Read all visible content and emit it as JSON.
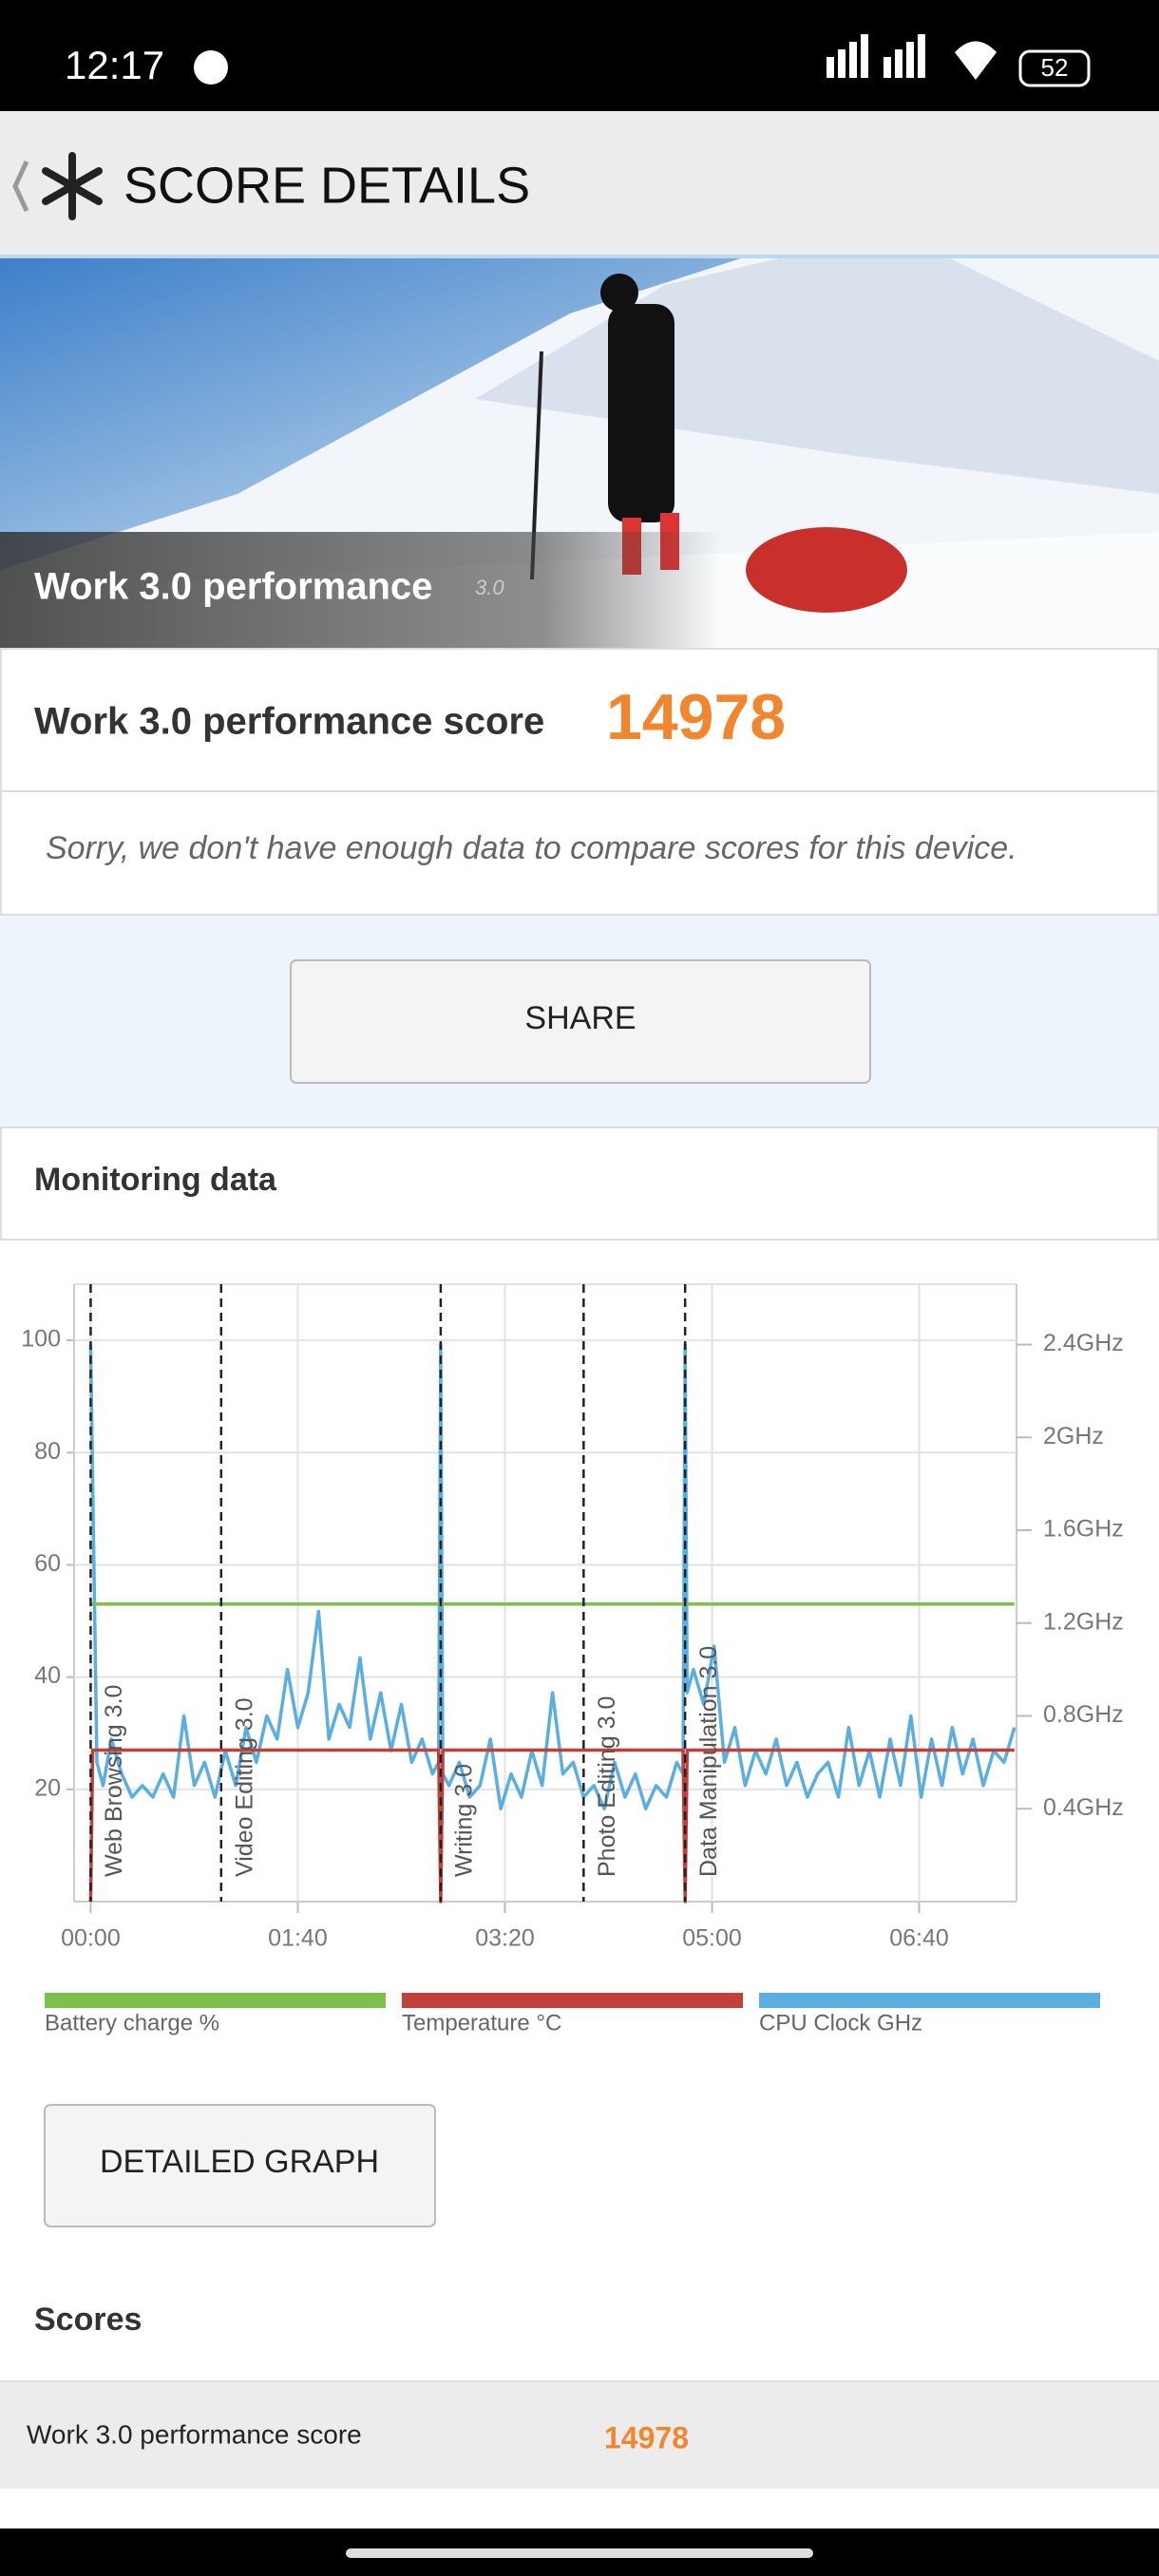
{
  "status_bar": {
    "time": "12:17",
    "battery": "52"
  },
  "header": {
    "title": "SCORE DETAILS"
  },
  "hero": {
    "title": "Work 3.0 performance",
    "version": "3.0"
  },
  "score": {
    "label": "Work 3.0 performance score",
    "value": 14978
  },
  "note": "Sorry, we don't have enough data to compare scores for this device.",
  "share_button": "SHARE",
  "monitoring": {
    "title": "Monitoring data"
  },
  "chart_data": {
    "type": "line",
    "xlim": [
      -8,
      447
    ],
    "xticks": [
      {
        "value": 0,
        "label": "00:00"
      },
      {
        "value": 100,
        "label": "01:40"
      },
      {
        "value": 200,
        "label": "03:20"
      },
      {
        "value": 300,
        "label": "05:00"
      },
      {
        "value": 400,
        "label": "06:40"
      }
    ],
    "ylim": [
      0,
      110
    ],
    "yticks": [
      20,
      40,
      60,
      80,
      100
    ],
    "y2lim": [
      0,
      2.66
    ],
    "y2ticks": [
      {
        "value": 0.4,
        "label": "0.4GHz"
      },
      {
        "value": 0.8,
        "label": "0.8GHz"
      },
      {
        "value": 1.2,
        "label": "1.2GHz"
      },
      {
        "value": 1.6,
        "label": "1.6GHz"
      },
      {
        "value": 2.0,
        "label": "2GHz"
      },
      {
        "value": 2.4,
        "label": "2.4GHz"
      }
    ],
    "grid": true,
    "legend": "bottom",
    "markers": [
      {
        "x": 0,
        "label": "Web Browsing 3.0"
      },
      {
        "x": 63,
        "label": "Video Editing 3.0"
      },
      {
        "x": 169,
        "label": "Writing 3.0"
      },
      {
        "x": 238,
        "label": "Photo Editing 3.0"
      },
      {
        "x": 287,
        "label": "Data Manipulation 3.0"
      }
    ],
    "series": [
      {
        "name": "Battery charge %",
        "color": "#7dc04b",
        "x": [
          0,
          446
        ],
        "values": [
          53,
          53
        ]
      },
      {
        "name": "Temperature °C",
        "color": "#c0403a",
        "x": [
          0,
          1,
          168,
          169,
          170,
          286,
          287,
          288,
          446
        ],
        "values": [
          0,
          27,
          27,
          0,
          27,
          27,
          0,
          27,
          27
        ]
      },
      {
        "name": "CPU Clock GHz",
        "color": "#5aafe0",
        "axis": "y2",
        "x": [
          0,
          3,
          6,
          10,
          15,
          20,
          25,
          30,
          35,
          40,
          45,
          50,
          55,
          60,
          65,
          70,
          75,
          80,
          85,
          90,
          95,
          100,
          105,
          110,
          115,
          120,
          125,
          130,
          135,
          140,
          145,
          150,
          155,
          160,
          165,
          168,
          169,
          170,
          173,
          178,
          183,
          188,
          193,
          198,
          203,
          208,
          213,
          218,
          223,
          228,
          233,
          238,
          243,
          248,
          253,
          258,
          263,
          268,
          273,
          278,
          283,
          286,
          287,
          288,
          291,
          296,
          301,
          306,
          311,
          316,
          321,
          326,
          331,
          336,
          341,
          346,
          351,
          356,
          361,
          366,
          371,
          376,
          381,
          386,
          391,
          396,
          401,
          406,
          411,
          416,
          421,
          426,
          431,
          436,
          441,
          446
        ],
        "values": [
          2.4,
          0.6,
          0.5,
          0.7,
          0.55,
          0.45,
          0.5,
          0.45,
          0.55,
          0.45,
          0.8,
          0.5,
          0.6,
          0.45,
          0.65,
          0.5,
          0.75,
          0.6,
          0.8,
          0.7,
          1.0,
          0.75,
          0.9,
          1.25,
          0.7,
          0.85,
          0.75,
          1.05,
          0.7,
          0.9,
          0.65,
          0.85,
          0.6,
          0.7,
          0.55,
          0.6,
          2.4,
          0.55,
          0.5,
          0.6,
          0.45,
          0.5,
          0.7,
          0.4,
          0.55,
          0.45,
          0.65,
          0.5,
          0.9,
          0.55,
          0.6,
          0.45,
          0.5,
          0.4,
          0.6,
          0.45,
          0.55,
          0.4,
          0.5,
          0.45,
          0.6,
          0.55,
          2.4,
          0.9,
          1.0,
          0.85,
          1.1,
          0.6,
          0.75,
          0.5,
          0.65,
          0.55,
          0.7,
          0.5,
          0.6,
          0.45,
          0.55,
          0.6,
          0.45,
          0.75,
          0.5,
          0.65,
          0.45,
          0.7,
          0.5,
          0.8,
          0.45,
          0.7,
          0.5,
          0.75,
          0.55,
          0.7,
          0.5,
          0.65,
          0.6,
          0.75
        ]
      }
    ]
  },
  "detailed_graph_button": "DETAILED GRAPH",
  "scores": {
    "title": "Scores",
    "rows": [
      {
        "label": "Work 3.0 performance score",
        "value": 14978
      }
    ]
  }
}
